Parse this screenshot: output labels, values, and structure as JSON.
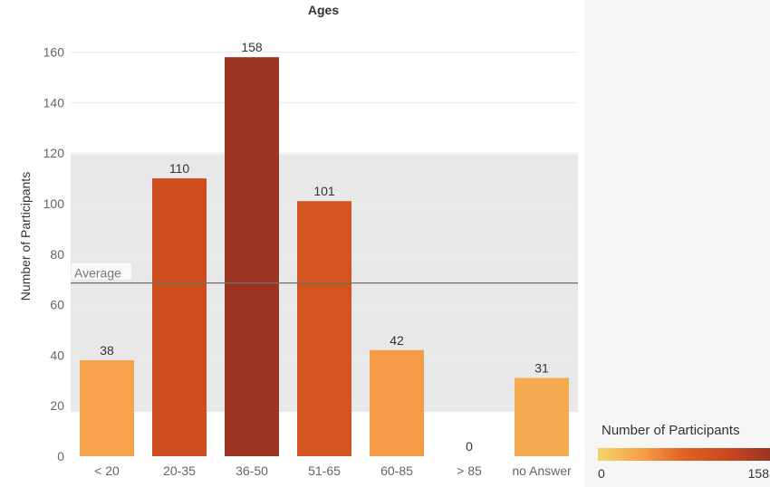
{
  "chart_data": {
    "type": "bar",
    "title": "Ages",
    "xlabel": "",
    "ylabel": "Number of Participants",
    "categories": [
      "< 20",
      "20-35",
      "36-50",
      "51-65",
      "60-85",
      "> 85",
      "no Answer"
    ],
    "values": [
      38,
      110,
      158,
      101,
      42,
      0,
      31
    ],
    "ylim": [
      0,
      160
    ],
    "yticks": [
      0,
      20,
      40,
      60,
      80,
      100,
      120,
      140,
      160
    ],
    "ytick_labels": [
      "0",
      "20",
      "40",
      "60",
      "80",
      "100",
      "120",
      "140",
      "160"
    ],
    "grid": true,
    "reference_line": {
      "label": "Average",
      "value": 68.6
    },
    "reference_band": [
      17.5,
      119.6
    ],
    "color_legend": {
      "title": "Number of Participants",
      "min": 0,
      "max": 158,
      "min_label": "0",
      "max_label": "158",
      "colors": [
        "#f5d36b",
        "#f6a04a",
        "#e0621f",
        "#c9481f",
        "#9c3422"
      ],
      "placement": "bottom-right"
    }
  }
}
